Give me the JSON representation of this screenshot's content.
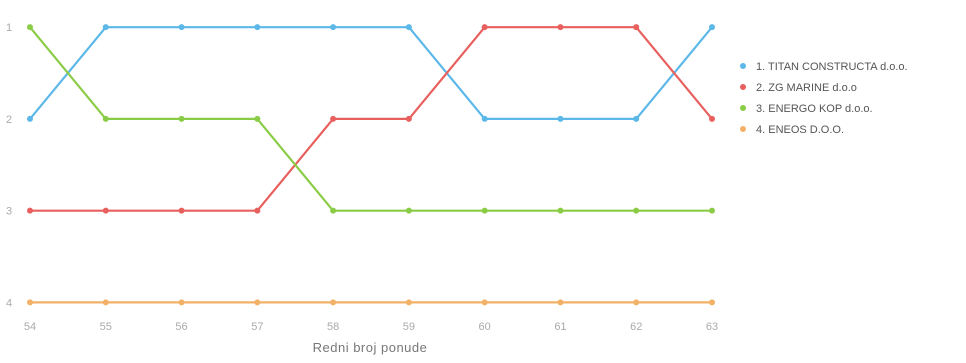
{
  "chart_data": {
    "type": "line",
    "title": "",
    "xlabel": "Redni broj ponude",
    "ylabel": "",
    "categories": [
      "54",
      "55",
      "56",
      "57",
      "58",
      "59",
      "60",
      "61",
      "62",
      "63"
    ],
    "ylim": [
      0.9,
      4.05
    ],
    "y_ticks": [
      "1",
      "2",
      "3",
      "4"
    ],
    "y_inverted": true,
    "grid": false,
    "legend_position": "right",
    "series": [
      {
        "name": "1. TITAN CONSTRUCTA d.o.o.",
        "color": "#5bb8e8",
        "values": [
          2,
          1,
          1,
          1,
          1,
          1,
          2,
          2,
          2,
          1
        ]
      },
      {
        "name": "2. ZG MARINE d.o.o",
        "color": "#e8605e",
        "values": [
          3,
          3,
          3,
          3,
          2,
          2,
          1,
          1,
          1,
          2
        ]
      },
      {
        "name": "3. ENERGO KOP d.o.o.",
        "color": "#8bcc47",
        "values": [
          1,
          2,
          2,
          2,
          3,
          3,
          3,
          3,
          3,
          3
        ]
      },
      {
        "name": "4. ENEOS D.O.O.",
        "color": "#f2b166",
        "values": [
          4,
          4,
          4,
          4,
          4,
          4,
          4,
          4,
          4,
          4
        ]
      }
    ]
  }
}
